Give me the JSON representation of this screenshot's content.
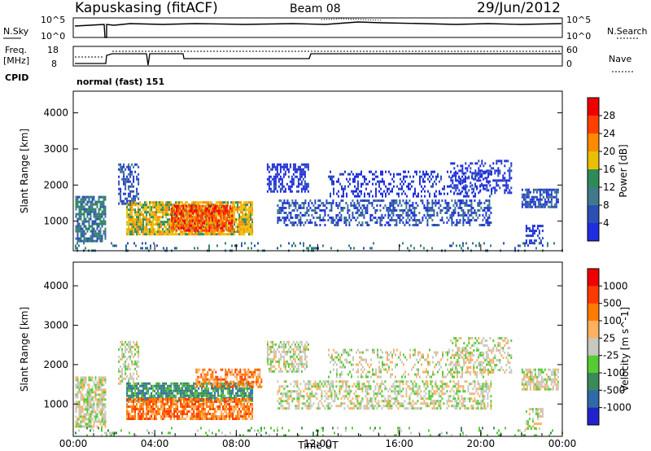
{
  "header": {
    "station": "Kapuskasing (fitACF)",
    "beam": "Beam 08",
    "date": "29/Jun/2012"
  },
  "strip_labels": {
    "nsky": "N.Sky",
    "nsearch": "N.Search",
    "freq_line1": "Freq.",
    "freq_line2": "[MHz]",
    "nave": "Nave",
    "cpid": "CPID",
    "cpid_value": "normal (fast) 151",
    "nsky_top": "10^5",
    "nsky_bottom": "10^0",
    "nsearch_top": "10^5",
    "nsearch_bottom": "10^0",
    "freq_top": "18",
    "freq_bottom": "8",
    "nave_top": "60",
    "nave_bottom": "0"
  },
  "chart_data": [
    {
      "type": "heatmap",
      "panel": "power",
      "ylabel": "Slant Range [km]",
      "ylim": [
        180,
        4600
      ],
      "yticks": [
        "1000",
        "2000",
        "3000",
        "4000"
      ],
      "xlim": [
        0,
        24
      ],
      "colorbar": {
        "label": "Power [dB]",
        "ticks": [
          "4",
          "8",
          "12",
          "16",
          "20",
          "24",
          "28"
        ],
        "colors": [
          "#1f2dde",
          "#2c4fb6",
          "#3f7a8c",
          "#2e8b57",
          "#e8c000",
          "#ff8a00",
          "#ff4000",
          "#ee0000"
        ]
      },
      "regions": [
        {
          "t0": 0.1,
          "t1": 1.6,
          "r0": 450,
          "r1": 1700,
          "lvl": 2,
          "den": 0.75
        },
        {
          "t0": 2.2,
          "t1": 3.2,
          "r0": 1500,
          "r1": 2600,
          "lvl": 1,
          "den": 0.5
        },
        {
          "t0": 2.6,
          "t1": 8.8,
          "r0": 650,
          "r1": 1550,
          "lvl": 4,
          "den": 0.85
        },
        {
          "t0": 4.8,
          "t1": 7.8,
          "r0": 750,
          "r1": 1450,
          "lvl": 6,
          "den": 0.8
        },
        {
          "t0": 9.5,
          "t1": 11.5,
          "r0": 1800,
          "r1": 2600,
          "lvl": 0,
          "den": 0.55
        },
        {
          "t0": 10.0,
          "t1": 20.5,
          "r0": 900,
          "r1": 1600,
          "lvl": 1,
          "den": 0.45
        },
        {
          "t0": 12.5,
          "t1": 20.5,
          "r0": 1700,
          "r1": 2400,
          "lvl": 0,
          "den": 0.3
        },
        {
          "t0": 18.5,
          "t1": 21.5,
          "r0": 1800,
          "r1": 2700,
          "lvl": 0,
          "den": 0.35
        },
        {
          "t0": 22.0,
          "t1": 23.8,
          "r0": 1400,
          "r1": 1900,
          "lvl": 1,
          "den": 0.7
        },
        {
          "t0": 22.2,
          "t1": 23.0,
          "r0": 350,
          "r1": 900,
          "lvl": 0,
          "den": 0.5
        },
        {
          "t0": 0.0,
          "t1": 24.0,
          "r0": 200,
          "r1": 420,
          "lvl": 2,
          "den": 0.12
        }
      ]
    },
    {
      "type": "heatmap",
      "panel": "velocity",
      "ylabel": "Slant Range [km]",
      "xlabel": "Time UT",
      "ylim": [
        180,
        4600
      ],
      "yticks": [
        "1000",
        "2000",
        "3000",
        "4000"
      ],
      "xlim": [
        0,
        24
      ],
      "xticks": [
        "00:00",
        "04:00",
        "08:00",
        "12:00",
        "16:00",
        "20:00",
        "00:00"
      ],
      "colorbar": {
        "label": "Velocity [m s^-1]",
        "ticks": [
          "1000",
          "500",
          "100",
          "25",
          "-25",
          "-100",
          "-500",
          "-1000"
        ],
        "colors": [
          "#2222cc",
          "#2f6aa8",
          "#3a8a5a",
          "#55cc33",
          "#c8c8c0",
          "#ffb060",
          "#ff7a00",
          "#ff3a00",
          "#ee0000"
        ]
      },
      "regions": [
        {
          "t0": 0.1,
          "t1": 1.6,
          "r0": 450,
          "r1": 1700,
          "lvl": 4,
          "den": 0.75
        },
        {
          "t0": 2.2,
          "t1": 3.2,
          "r0": 1500,
          "r1": 2600,
          "lvl": 4,
          "den": 0.5
        },
        {
          "t0": 2.6,
          "t1": 8.8,
          "r0": 1100,
          "r1": 1550,
          "lvl": 2,
          "den": 0.8
        },
        {
          "t0": 2.6,
          "t1": 8.8,
          "r0": 650,
          "r1": 1150,
          "lvl": 6,
          "den": 0.8
        },
        {
          "t0": 6.0,
          "t1": 9.2,
          "r0": 1450,
          "r1": 1900,
          "lvl": 6,
          "den": 0.6
        },
        {
          "t0": 9.5,
          "t1": 11.5,
          "r0": 1800,
          "r1": 2600,
          "lvl": 4,
          "den": 0.55
        },
        {
          "t0": 10.0,
          "t1": 20.5,
          "r0": 900,
          "r1": 1600,
          "lvl": 4,
          "den": 0.45
        },
        {
          "t0": 12.5,
          "t1": 20.5,
          "r0": 1700,
          "r1": 2400,
          "lvl": 4,
          "den": 0.3
        },
        {
          "t0": 18.5,
          "t1": 21.5,
          "r0": 1800,
          "r1": 2700,
          "lvl": 4,
          "den": 0.35
        },
        {
          "t0": 22.0,
          "t1": 23.8,
          "r0": 1400,
          "r1": 1900,
          "lvl": 4,
          "den": 0.7
        },
        {
          "t0": 22.2,
          "t1": 23.0,
          "r0": 350,
          "r1": 900,
          "lvl": 4,
          "den": 0.5
        },
        {
          "t0": 0.0,
          "t1": 24.0,
          "r0": 200,
          "r1": 420,
          "lvl": 3,
          "den": 0.12
        }
      ]
    }
  ]
}
